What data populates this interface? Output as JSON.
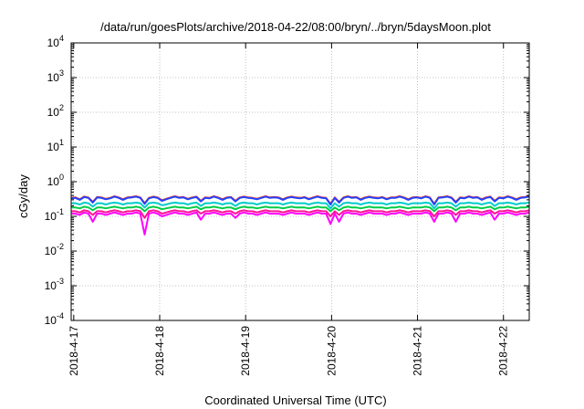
{
  "chart_data": {
    "type": "line",
    "title": "/data/run/goesPlots/archive/2018-04-22/08:00/bryn/../bryn/5daysMoon.plot",
    "xlabel": "Coordinated Universal Time (UTC)",
    "ylabel": "cGy/day",
    "yscale": "log",
    "ylim": [
      0.0001,
      10000
    ],
    "y_ticks": [
      {
        "base": "10",
        "exp": "-4"
      },
      {
        "base": "10",
        "exp": "-3"
      },
      {
        "base": "10",
        "exp": "-2"
      },
      {
        "base": "10",
        "exp": "-1"
      },
      {
        "base": "10",
        "exp": "0"
      },
      {
        "base": "10",
        "exp": "1"
      },
      {
        "base": "10",
        "exp": "2"
      },
      {
        "base": "10",
        "exp": "3"
      },
      {
        "base": "10",
        "exp": "4"
      }
    ],
    "x_ticks": [
      "2018-4-17",
      "2018-4-18",
      "2018-4-19",
      "2018-4-20",
      "2018-4-21",
      "2018-4-22"
    ],
    "xlim_days": [
      0,
      5.33
    ],
    "grid": true,
    "legend": "none",
    "series": [
      {
        "color": "#ff00ff",
        "values": [
          0.12,
          0.12,
          0.11,
          0.13,
          0.12,
          0.07,
          0.12,
          0.12,
          0.11,
          0.12,
          0.13,
          0.12,
          0.11,
          0.12,
          0.12,
          0.13,
          0.12,
          0.03,
          0.12,
          0.13,
          0.12,
          0.1,
          0.11,
          0.12,
          0.13,
          0.12,
          0.12,
          0.11,
          0.12,
          0.13,
          0.08,
          0.12,
          0.12,
          0.13,
          0.12,
          0.11,
          0.12,
          0.12,
          0.09,
          0.12,
          0.13,
          0.12,
          0.12,
          0.11,
          0.12,
          0.13,
          0.12,
          0.12,
          0.12,
          0.11,
          0.12,
          0.13,
          0.12,
          0.12,
          0.12,
          0.11,
          0.12,
          0.13,
          0.12,
          0.12,
          0.06,
          0.12,
          0.07,
          0.12,
          0.13,
          0.12,
          0.12,
          0.11,
          0.12,
          0.13,
          0.12,
          0.12,
          0.12,
          0.11,
          0.12,
          0.12,
          0.13,
          0.12,
          0.11,
          0.12,
          0.12,
          0.12,
          0.13,
          0.12,
          0.07,
          0.12,
          0.12,
          0.13,
          0.12,
          0.07,
          0.12,
          0.12,
          0.13,
          0.12,
          0.12,
          0.11,
          0.12,
          0.13,
          0.08,
          0.12,
          0.12,
          0.13,
          0.12,
          0.11,
          0.12,
          0.12,
          0.13
        ]
      },
      {
        "color": "#ff1493",
        "values": [
          0.14,
          0.14,
          0.13,
          0.15,
          0.14,
          0.11,
          0.14,
          0.14,
          0.13,
          0.14,
          0.15,
          0.14,
          0.13,
          0.14,
          0.14,
          0.15,
          0.14,
          0.09,
          0.14,
          0.15,
          0.14,
          0.12,
          0.13,
          0.14,
          0.15,
          0.14,
          0.14,
          0.13,
          0.14,
          0.15,
          0.12,
          0.14,
          0.14,
          0.15,
          0.14,
          0.13,
          0.14,
          0.14,
          0.12,
          0.14,
          0.15,
          0.14,
          0.14,
          0.13,
          0.14,
          0.15,
          0.14,
          0.14,
          0.14,
          0.13,
          0.14,
          0.15,
          0.14,
          0.14,
          0.14,
          0.13,
          0.14,
          0.15,
          0.14,
          0.14,
          0.1,
          0.14,
          0.11,
          0.14,
          0.15,
          0.14,
          0.14,
          0.13,
          0.14,
          0.15,
          0.14,
          0.14,
          0.14,
          0.13,
          0.14,
          0.14,
          0.15,
          0.14,
          0.13,
          0.14,
          0.14,
          0.14,
          0.15,
          0.14,
          0.1,
          0.14,
          0.14,
          0.15,
          0.14,
          0.11,
          0.14,
          0.14,
          0.15,
          0.14,
          0.14,
          0.13,
          0.14,
          0.15,
          0.12,
          0.14,
          0.14,
          0.15,
          0.14,
          0.13,
          0.14,
          0.14,
          0.15
        ]
      },
      {
        "color": "#00cc44",
        "values": [
          0.18,
          0.18,
          0.17,
          0.19,
          0.18,
          0.15,
          0.18,
          0.18,
          0.17,
          0.18,
          0.19,
          0.18,
          0.17,
          0.18,
          0.18,
          0.19,
          0.18,
          0.14,
          0.18,
          0.19,
          0.18,
          0.16,
          0.17,
          0.18,
          0.19,
          0.18,
          0.18,
          0.17,
          0.18,
          0.19,
          0.16,
          0.18,
          0.18,
          0.19,
          0.18,
          0.17,
          0.18,
          0.18,
          0.16,
          0.18,
          0.19,
          0.18,
          0.18,
          0.17,
          0.18,
          0.19,
          0.18,
          0.18,
          0.18,
          0.17,
          0.18,
          0.19,
          0.18,
          0.18,
          0.18,
          0.17,
          0.18,
          0.19,
          0.18,
          0.18,
          0.14,
          0.18,
          0.15,
          0.18,
          0.19,
          0.18,
          0.18,
          0.17,
          0.18,
          0.19,
          0.18,
          0.18,
          0.18,
          0.17,
          0.18,
          0.18,
          0.19,
          0.18,
          0.17,
          0.18,
          0.18,
          0.18,
          0.19,
          0.18,
          0.14,
          0.18,
          0.18,
          0.19,
          0.18,
          0.15,
          0.18,
          0.18,
          0.19,
          0.18,
          0.18,
          0.17,
          0.18,
          0.19,
          0.16,
          0.18,
          0.18,
          0.19,
          0.18,
          0.17,
          0.18,
          0.18,
          0.19
        ]
      },
      {
        "color": "#00cccc",
        "values": [
          0.24,
          0.24,
          0.22,
          0.25,
          0.24,
          0.19,
          0.24,
          0.24,
          0.22,
          0.24,
          0.25,
          0.24,
          0.22,
          0.24,
          0.24,
          0.25,
          0.24,
          0.18,
          0.24,
          0.25,
          0.24,
          0.21,
          0.22,
          0.24,
          0.25,
          0.24,
          0.24,
          0.22,
          0.24,
          0.25,
          0.2,
          0.24,
          0.24,
          0.25,
          0.24,
          0.22,
          0.24,
          0.24,
          0.2,
          0.24,
          0.25,
          0.24,
          0.24,
          0.22,
          0.24,
          0.25,
          0.24,
          0.24,
          0.24,
          0.22,
          0.24,
          0.25,
          0.24,
          0.24,
          0.24,
          0.22,
          0.24,
          0.25,
          0.24,
          0.24,
          0.17,
          0.24,
          0.19,
          0.24,
          0.25,
          0.24,
          0.24,
          0.22,
          0.24,
          0.25,
          0.24,
          0.24,
          0.24,
          0.22,
          0.24,
          0.24,
          0.25,
          0.24,
          0.22,
          0.24,
          0.24,
          0.24,
          0.25,
          0.24,
          0.17,
          0.24,
          0.24,
          0.25,
          0.24,
          0.19,
          0.24,
          0.24,
          0.25,
          0.24,
          0.24,
          0.22,
          0.24,
          0.25,
          0.2,
          0.24,
          0.24,
          0.25,
          0.24,
          0.22,
          0.24,
          0.24,
          0.25
        ]
      },
      {
        "color": "#ff2200",
        "values": [
          0.34,
          0.35,
          0.31,
          0.37,
          0.35,
          0.26,
          0.36,
          0.35,
          0.32,
          0.34,
          0.38,
          0.35,
          0.31,
          0.35,
          0.36,
          0.38,
          0.35,
          0.24,
          0.34,
          0.37,
          0.35,
          0.29,
          0.32,
          0.35,
          0.38,
          0.35,
          0.36,
          0.32,
          0.35,
          0.37,
          0.28,
          0.35,
          0.34,
          0.38,
          0.35,
          0.31,
          0.35,
          0.36,
          0.28,
          0.35,
          0.37,
          0.35,
          0.34,
          0.32,
          0.35,
          0.38,
          0.35,
          0.36,
          0.35,
          0.31,
          0.35,
          0.37,
          0.35,
          0.34,
          0.36,
          0.32,
          0.35,
          0.38,
          0.35,
          0.34,
          0.23,
          0.35,
          0.26,
          0.35,
          0.38,
          0.35,
          0.36,
          0.31,
          0.35,
          0.37,
          0.35,
          0.34,
          0.36,
          0.32,
          0.35,
          0.35,
          0.38,
          0.35,
          0.31,
          0.35,
          0.36,
          0.34,
          0.38,
          0.35,
          0.23,
          0.35,
          0.36,
          0.38,
          0.35,
          0.26,
          0.35,
          0.34,
          0.38,
          0.35,
          0.36,
          0.31,
          0.35,
          0.37,
          0.28,
          0.35,
          0.34,
          0.38,
          0.35,
          0.31,
          0.35,
          0.36,
          0.38
        ]
      },
      {
        "color": "#2244ff",
        "values": [
          0.33,
          0.34,
          0.3,
          0.36,
          0.34,
          0.25,
          0.35,
          0.34,
          0.31,
          0.33,
          0.37,
          0.34,
          0.3,
          0.34,
          0.35,
          0.37,
          0.34,
          0.23,
          0.33,
          0.36,
          0.34,
          0.28,
          0.31,
          0.34,
          0.37,
          0.34,
          0.35,
          0.31,
          0.34,
          0.36,
          0.27,
          0.34,
          0.33,
          0.37,
          0.34,
          0.3,
          0.34,
          0.35,
          0.27,
          0.34,
          0.36,
          0.34,
          0.33,
          0.31,
          0.34,
          0.37,
          0.34,
          0.35,
          0.34,
          0.3,
          0.34,
          0.36,
          0.34,
          0.33,
          0.35,
          0.31,
          0.34,
          0.37,
          0.34,
          0.33,
          0.22,
          0.34,
          0.25,
          0.34,
          0.37,
          0.34,
          0.35,
          0.3,
          0.34,
          0.36,
          0.34,
          0.33,
          0.35,
          0.31,
          0.34,
          0.34,
          0.37,
          0.34,
          0.3,
          0.34,
          0.35,
          0.33,
          0.37,
          0.34,
          0.22,
          0.34,
          0.35,
          0.37,
          0.34,
          0.25,
          0.34,
          0.33,
          0.37,
          0.34,
          0.35,
          0.3,
          0.34,
          0.36,
          0.27,
          0.34,
          0.33,
          0.37,
          0.34,
          0.3,
          0.34,
          0.35,
          0.37
        ]
      }
    ]
  }
}
